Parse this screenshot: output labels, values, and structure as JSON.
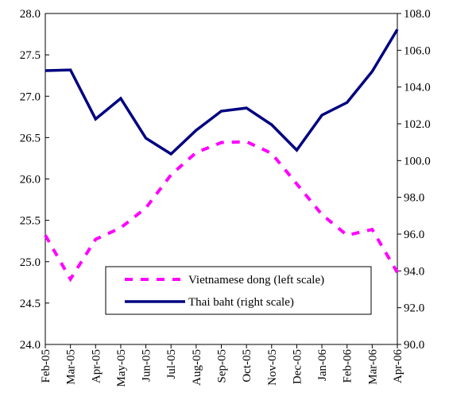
{
  "chart_data": {
    "type": "line",
    "categories": [
      "Feb-05",
      "Mar-05",
      "Apr-05",
      "May-05",
      "Jun-05",
      "Jul-05",
      "Aug-05",
      "Sep-05",
      "Oct-05",
      "Nov-05",
      "Dec-05",
      "Jan-06",
      "Feb-06",
      "Mar-06",
      "Apr-06"
    ],
    "series": [
      {
        "name": "Vietnamese dong (left scale)",
        "color": "#ff00ff",
        "dashed": true,
        "values": [
          25.32,
          24.79,
          25.27,
          25.41,
          25.65,
          26.05,
          26.32,
          26.44,
          26.45,
          26.31,
          25.94,
          25.57,
          25.32,
          25.39,
          24.87
        ]
      },
      {
        "name": "Thai baht (right scale)",
        "color": "#000080",
        "axis": "y2",
        "values": [
          104.89,
          104.93,
          102.26,
          103.38,
          101.22,
          100.36,
          101.65,
          102.69,
          102.86,
          101.95,
          100.57,
          102.47,
          103.16,
          104.85,
          107.13
        ]
      }
    ],
    "ylim": [
      24,
      28
    ],
    "yticks": [
      {
        "value": 24,
        "label": "24.0"
      },
      {
        "value": 24.5,
        "label": "24.5"
      },
      {
        "value": 25,
        "label": "25.0"
      },
      {
        "value": 25.5,
        "label": "25.5"
      },
      {
        "value": 26,
        "label": "26.0"
      },
      {
        "value": 26.5,
        "label": "26.5"
      },
      {
        "value": 27,
        "label": "27.0"
      },
      {
        "value": 27.5,
        "label": "27.5"
      },
      {
        "value": 28,
        "label": "28.0"
      }
    ],
    "y2lim": [
      90,
      108
    ],
    "y2ticks": [
      {
        "value": 90,
        "label": "90.0"
      },
      {
        "value": 92,
        "label": "92.0"
      },
      {
        "value": 94,
        "label": "94.0"
      },
      {
        "value": 96,
        "label": "96.0"
      },
      {
        "value": 98,
        "label": "98.0"
      },
      {
        "value": 100,
        "label": "100.0"
      },
      {
        "value": 102,
        "label": "102.0"
      },
      {
        "value": 104,
        "label": "104.0"
      },
      {
        "value": 106,
        "label": "106.0"
      },
      {
        "value": 108,
        "label": "108.0"
      }
    ],
    "legend": "lower center"
  }
}
